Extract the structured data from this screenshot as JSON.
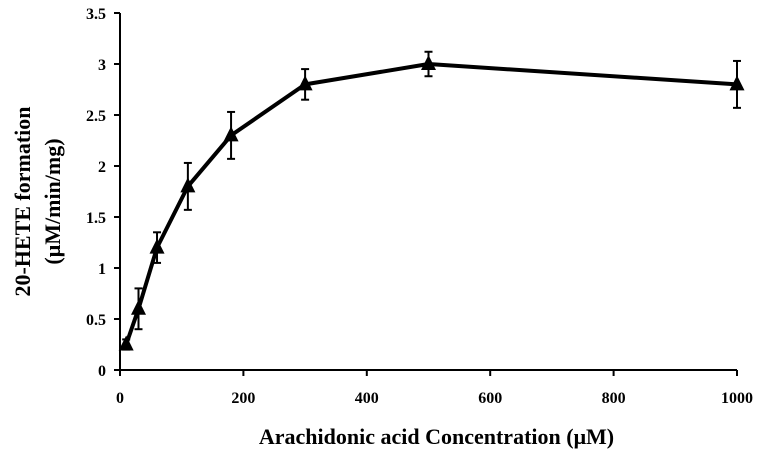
{
  "chart_data": {
    "type": "line",
    "xlabel": "Arachidonic acid Concentration (μM)",
    "ylabel_lines": [
      "20-HETE formation",
      "(μM/min/mg)"
    ],
    "xlim": [
      0,
      1000
    ],
    "ylim": [
      0,
      3.5
    ],
    "x_ticks": [
      0,
      200,
      400,
      600,
      800,
      1000
    ],
    "y_ticks": [
      0,
      0.5,
      1,
      1.5,
      2,
      2.5,
      3,
      3.5
    ],
    "y_tick_labels": [
      "0",
      "0.5",
      "1",
      "1.5",
      "2",
      "2.5",
      "3",
      "3.5"
    ],
    "grid": false,
    "marker": "triangle",
    "line_color": "#000000",
    "series": [
      {
        "x": [
          10,
          30,
          60,
          110,
          180,
          300,
          500,
          1000
        ],
        "y": [
          0.25,
          0.6,
          1.2,
          1.8,
          2.3,
          2.8,
          3.0,
          2.8
        ],
        "error": [
          0.05,
          0.2,
          0.15,
          0.23,
          0.23,
          0.15,
          0.12,
          0.23
        ]
      }
    ]
  }
}
